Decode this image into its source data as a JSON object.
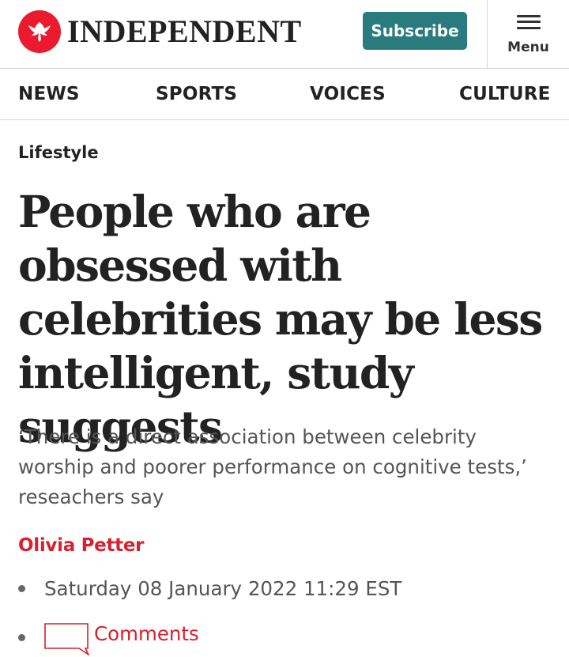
{
  "header": {
    "logo_text": "INDEPENDENT",
    "logo_icon": "eagle-icon",
    "subscribe_label": "Subscribe",
    "menu_label": "Menu",
    "menu_icon": "hamburger-icon"
  },
  "nav": {
    "items": [
      {
        "label": "NEWS"
      },
      {
        "label": "SPORTS"
      },
      {
        "label": "VOICES"
      },
      {
        "label": "CULTURE"
      }
    ]
  },
  "article": {
    "section": "Lifestyle",
    "headline": "People who are obsessed with celebrities may be less intelligent, study suggests",
    "standfirst": "‘There is a direct association between celebrity worship and poorer performance on cognitive tests,’ reseachers say",
    "author": "Olivia Petter",
    "date": "Saturday 08 January 2022 11:29 EST",
    "comments_label": "Comments",
    "comments_icon": "comment-bubble-icon"
  },
  "colors": {
    "brand_red": "#ec1a2e",
    "subscribe_teal": "#2a7b7e",
    "author_red": "#d8202f",
    "text_dark": "#222222",
    "text_grey": "#555555"
  }
}
